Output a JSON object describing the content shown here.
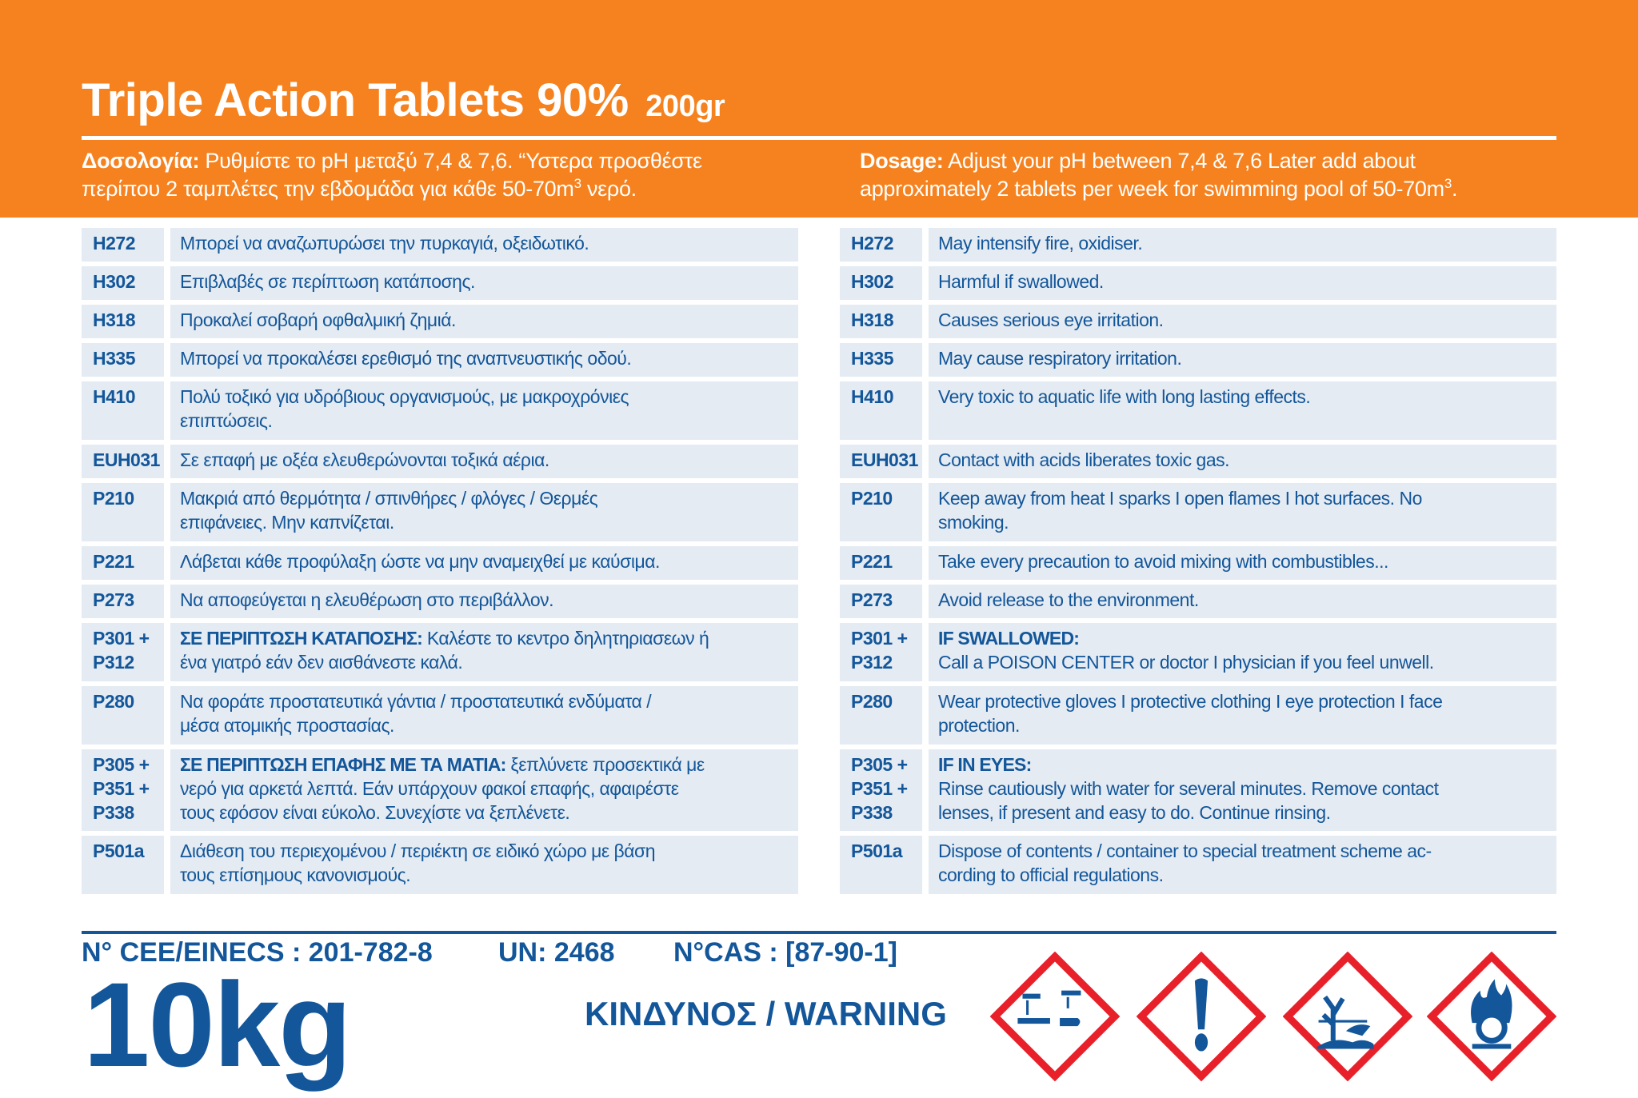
{
  "header": {
    "title": "Triple Action Tablets 90%",
    "title_weight": "200gr",
    "dosage_gr": {
      "label": "Δοσολογία:",
      "text": " Ρυθμίστε το pH μεταξύ 7,4 & 7,6. “Υστερα προσθέστε\nπερίπου 2 ταμπλέτες την εβδομάδα για κάθε 50-70m",
      "sup": "3",
      "tail": " νερό."
    },
    "dosage_en": {
      "label": "Dosage:",
      "text": " Adjust your pH between 7,4 & 7,6 Later add about\napproximately 2 tablets per week for swimming pool of 50-70m",
      "sup": "3",
      "tail": "."
    }
  },
  "statements_gr": [
    {
      "code": "H272",
      "text": "Μπορεί να αναζωπυρώσει την πυρκαγιά, οξειδωτικό.",
      "lines": 1
    },
    {
      "code": "H302",
      "text": "Επιβλαβές σε περίπτωση κατάποσης.",
      "lines": 1
    },
    {
      "code": "H318",
      "text": "Προκαλεί σοβαρή οφθαλμική ζημιά.",
      "lines": 1
    },
    {
      "code": "H335",
      "text": "Μπορεί να προκαλέσει ερεθισμό της αναπνευστικής οδού.",
      "lines": 1
    },
    {
      "code": "H410",
      "text": "Πολύ τοξικό για υδρόβιους οργανισμούς, με μακροχρόνιες\nεπιπτώσεις.",
      "lines": 2
    },
    {
      "code": "EUH031",
      "text": "Σε επαφή με οξέα ελευθερώνονται τοξικά αέρια.",
      "lines": 1
    },
    {
      "code": "P210",
      "text": "Μακριά από θερμότητα / σπινθήρες / φλόγες / Θερμές\nεπιφάνειες. Μην καπνίζεται.",
      "lines": 2
    },
    {
      "code": "P221",
      "text": "Λάβεται κάθε προφύλαξη ώστε να μην αναμειχθεί με καύσιμα.",
      "lines": 1
    },
    {
      "code": "P273",
      "text": "Να αποφεύγεται η ελευθέρωση στο περιβάλλον.",
      "lines": 1
    },
    {
      "code": "P301 +\nP312",
      "bold": "ΣΕ ΠΕΡΙΠΤΩΣΗ ΚΑΤΑΠΟΣΗΣ:",
      "text": " Καλέστε το κεντρο δηλητηριασεων ή\nένα γιατρό εάν δεν αισθάνεστε καλά.",
      "lines": 2
    },
    {
      "code": "P280",
      "text": "Να φοράτε προστατευτικά γάντια / προστατευτικά ενδύματα /\nμέσα ατομικής προστασίας.",
      "lines": 2
    },
    {
      "code": "P305 +\nP351 +\nP338",
      "bold": "ΣΕ ΠΕΡΙΠΤΩΣΗ ΕΠΑΦΗΣ ΜΕ ΤΑ ΜΑΤΙΑ:",
      "text": " ξεπλύνετε προσεκτικά με\nνερό για αρκετά λεπτά. Εάν υπάρχουν φακοί επαφής, αφαιρέστε\nτους εφόσον είναι εύκολο. Συνεχίστε να ξεπλένετε.",
      "lines": 3
    },
    {
      "code": "P501a",
      "text": "Διάθεση του περιεχομένου / περιέκτη σε ειδικό χώρο με βάση\nτους επίσημους κανονισμούς.",
      "lines": 2
    }
  ],
  "statements_en": [
    {
      "code": "H272",
      "text": "May intensify fire, oxidiser.",
      "lines": 1
    },
    {
      "code": "H302",
      "text": "Harmful if swallowed.",
      "lines": 1
    },
    {
      "code": "H318",
      "text": "Causes serious eye irritation.",
      "lines": 1
    },
    {
      "code": "H335",
      "text": "May cause respiratory irritation.",
      "lines": 1
    },
    {
      "code": "H410",
      "text": "Very toxic to aquatic life with long lasting effects.",
      "lines": 2
    },
    {
      "code": "EUH031",
      "text": "Contact with acids liberates toxic gas.",
      "lines": 1
    },
    {
      "code": "P210",
      "text": "Keep away from heat I sparks I open flames I hot surfaces. No\nsmoking.",
      "lines": 2
    },
    {
      "code": "P221",
      "text": "Take every precaution to avoid mixing with combustibles...",
      "lines": 1
    },
    {
      "code": "P273",
      "text": "Avoid release to the environment.",
      "lines": 1
    },
    {
      "code": "P301 +\nP312",
      "bold": "IF SWALLOWED:",
      "text": "\nCall a POISON CENTER or doctor I physician if you feel unwell.",
      "lines": 2
    },
    {
      "code": "P280",
      "text": "Wear protective gloves I protective clothing I eye protection I face\nprotection.",
      "lines": 2
    },
    {
      "code": "P305 +\nP351 +\nP338",
      "bold": "IF IN EYES:",
      "text": "\nRinse cautiously with water for several minutes. Remove contact\nlenses, if present and easy to do. Continue rinsing.",
      "lines": 3
    },
    {
      "code": "P501a",
      "text": "Dispose of contents / container to special treatment scheme ac-\ncording to official regulations.",
      "lines": 2
    }
  ],
  "footer": {
    "einecs": "N° CEE/EINECS : 201-782-8",
    "un": "UN: 2468",
    "cas": "N°CAS : [87-90-1]",
    "weight": "10kg",
    "signal_word": "ΚΙΝΔΥΝΟΣ / WARNING",
    "pictograms": [
      "corrosion-icon",
      "exclamation-mark-icon",
      "environment-icon",
      "oxidizer-flame-over-circle-icon"
    ]
  },
  "colors": {
    "orange": "#f5821f",
    "blue": "#13569a",
    "cell_bg": "#e4ebf2",
    "pictogram_border": "#e8202a"
  }
}
